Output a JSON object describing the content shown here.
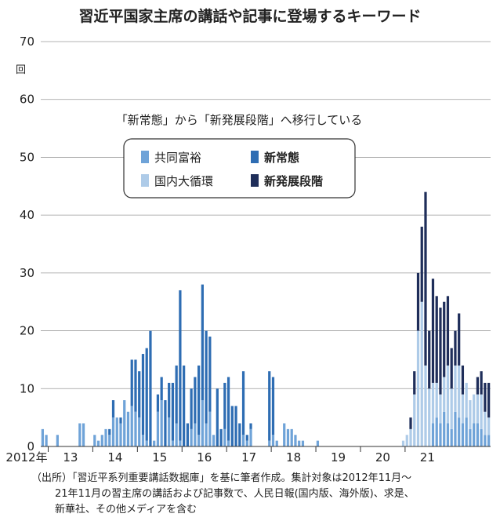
{
  "chart_data": {
    "type": "bar",
    "stacked": true,
    "title": "習近平国家主席の講話や記事に登場するキーワード",
    "ylabel": "回",
    "ylim": [
      0,
      70
    ],
    "yticks": [
      0,
      10,
      20,
      30,
      40,
      50,
      60,
      70
    ],
    "grid": true,
    "annotation": "「新常態」から「新発展段階」へ移行している",
    "legend_position": "upper-center",
    "x_tick_labels": [
      "2012年",
      "13",
      "14",
      "15",
      "16",
      "17",
      "18",
      "19",
      "20",
      "21"
    ],
    "x_tick_years": [
      2012,
      2013,
      2014,
      2015,
      2016,
      2017,
      2018,
      2019,
      2020,
      2021
    ],
    "period": {
      "start": "2012-11",
      "end": "2021-11",
      "interval": "month"
    },
    "series": [
      {
        "name": "共同富裕",
        "color": "#6fa3d8",
        "values": [
          3,
          2,
          0,
          0,
          2,
          0,
          0,
          0,
          0,
          0,
          4,
          4,
          0,
          0,
          2,
          1,
          2,
          3,
          2,
          5,
          5,
          4,
          8,
          6,
          7,
          6,
          5,
          2,
          1,
          0,
          1,
          6,
          8,
          0,
          5,
          1,
          4,
          1,
          0,
          0,
          3,
          4,
          2,
          8,
          4,
          6,
          2,
          0,
          0,
          3,
          1,
          0,
          0,
          0,
          2,
          1,
          3,
          0,
          0,
          0,
          0,
          1,
          2,
          1,
          0,
          4,
          3,
          3,
          2,
          1,
          1,
          0,
          0,
          0,
          1,
          0,
          0,
          0,
          0,
          0,
          0,
          0,
          0,
          0,
          0,
          0,
          0,
          0,
          0,
          0,
          0,
          0,
          0,
          0,
          0,
          0,
          0,
          0,
          0,
          0,
          0,
          0,
          0,
          0,
          0,
          4,
          5,
          4,
          6,
          4,
          3,
          6,
          5,
          4,
          5,
          3,
          4,
          4,
          3,
          2,
          2
        ]
      },
      {
        "name": "新常態",
        "color": "#2e6db3",
        "values": [
          0,
          0,
          0,
          0,
          0,
          0,
          0,
          0,
          0,
          0,
          0,
          0,
          0,
          0,
          0,
          0,
          0,
          0,
          1,
          3,
          0,
          1,
          0,
          0,
          8,
          9,
          8,
          14,
          16,
          20,
          0,
          3,
          4,
          8,
          6,
          10,
          10,
          26,
          14,
          4,
          7,
          8,
          12,
          20,
          16,
          13,
          0,
          10,
          3,
          8,
          11,
          7,
          7,
          4,
          11,
          1,
          1,
          0,
          0,
          0,
          0,
          12,
          10,
          0,
          0,
          0,
          0,
          0,
          0,
          0,
          0,
          0,
          0,
          0,
          0,
          0,
          0,
          0,
          0,
          0,
          0,
          0,
          0,
          0,
          0,
          0,
          0,
          0,
          0,
          0,
          0,
          0,
          0,
          0,
          0,
          0,
          0,
          0,
          0,
          0,
          0,
          0,
          0,
          0,
          0,
          0,
          0,
          0,
          0,
          0,
          0,
          0,
          0,
          0,
          0,
          0,
          0,
          0,
          0,
          0,
          0
        ]
      },
      {
        "name": "国内大循環",
        "color": "#aecbe8",
        "values": [
          0,
          0,
          0,
          0,
          0,
          0,
          0,
          0,
          0,
          0,
          0,
          0,
          0,
          0,
          0,
          0,
          0,
          0,
          0,
          0,
          0,
          0,
          0,
          0,
          0,
          0,
          0,
          0,
          0,
          0,
          0,
          0,
          0,
          0,
          0,
          0,
          0,
          0,
          0,
          0,
          0,
          0,
          0,
          0,
          0,
          0,
          0,
          0,
          0,
          0,
          0,
          0,
          0,
          0,
          0,
          0,
          0,
          0,
          0,
          0,
          0,
          0,
          0,
          0,
          0,
          0,
          0,
          0,
          0,
          0,
          0,
          0,
          0,
          0,
          0,
          0,
          0,
          0,
          0,
          0,
          0,
          0,
          0,
          0,
          0,
          0,
          0,
          0,
          0,
          0,
          0,
          0,
          0,
          0,
          0,
          0,
          0,
          1,
          2,
          3,
          9,
          20,
          25,
          14,
          10,
          7,
          6,
          5,
          6,
          10,
          7,
          8,
          9,
          5,
          6,
          5,
          5,
          5,
          6,
          4,
          3
        ]
      },
      {
        "name": "新発展段階",
        "color": "#1f2e5a",
        "values": [
          0,
          0,
          0,
          0,
          0,
          0,
          0,
          0,
          0,
          0,
          0,
          0,
          0,
          0,
          0,
          0,
          0,
          0,
          0,
          0,
          0,
          0,
          0,
          0,
          0,
          0,
          0,
          0,
          0,
          0,
          0,
          0,
          0,
          0,
          0,
          0,
          0,
          0,
          0,
          0,
          0,
          0,
          0,
          0,
          0,
          0,
          0,
          0,
          0,
          0,
          0,
          0,
          0,
          0,
          0,
          0,
          0,
          0,
          0,
          0,
          0,
          0,
          0,
          0,
          0,
          0,
          0,
          0,
          0,
          0,
          0,
          0,
          0,
          0,
          0,
          0,
          0,
          0,
          0,
          0,
          0,
          0,
          0,
          0,
          0,
          0,
          0,
          0,
          0,
          0,
          0,
          0,
          0,
          0,
          0,
          0,
          0,
          0,
          0,
          2,
          4,
          10,
          13,
          30,
          10,
          18,
          15,
          15,
          13,
          12,
          7,
          6,
          9,
          5,
          0,
          0,
          0,
          3,
          4,
          5,
          6
        ]
      }
    ]
  },
  "source_note": [
    "（出所）「習近平系列重要講話数据庫」を基に筆者作成。集計対象は2012年11月～",
    "21年11月の習主席の講話および記事数で、人民日報(国内版、海外版)、求是、",
    "新華社、その他メディアを含む"
  ]
}
